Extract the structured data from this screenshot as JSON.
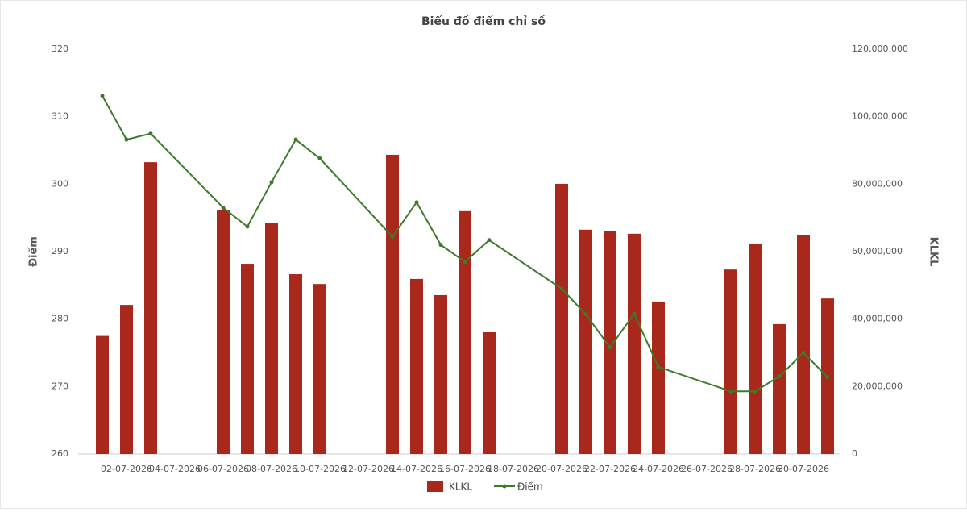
{
  "chart_data": {
    "type": "bar",
    "title": "Biểu đồ điểm chỉ số",
    "ylabel": "Điểm",
    "y2label": "KLKL",
    "x": [
      "01-07-2026",
      "02-07-2026",
      "03-07-2026",
      "06-07-2026",
      "07-07-2026",
      "08-07-2026",
      "09-07-2026",
      "10-07-2026",
      "13-07-2026",
      "14-07-2026",
      "15-07-2026",
      "16-07-2026",
      "17-07-2026",
      "20-07-2026",
      "21-07-2026",
      "22-07-2026",
      "23-07-2026",
      "24-07-2026",
      "27-07-2026",
      "28-07-2026",
      "29-07-2026",
      "30-07-2026",
      "31-07-2026"
    ],
    "xlim": [
      "01-07-2026",
      "31-07-2026"
    ],
    "xticks": [
      "02-07-2026",
      "04-07-2026",
      "06-07-2026",
      "08-07-2026",
      "10-07-2026",
      "12-07-2026",
      "14-07-2026",
      "16-07-2026",
      "18-07-2026",
      "20-07-2026",
      "22-07-2026",
      "24-07-2026",
      "26-07-2026",
      "28-07-2026",
      "30-07-2026"
    ],
    "ylim": [
      260,
      320
    ],
    "yticks": [
      260,
      270,
      280,
      290,
      300,
      310,
      320
    ],
    "y2lim": [
      0,
      120000000
    ],
    "y2ticks": [
      0,
      {
        "value": 20000000,
        "label": "20,000,000"
      },
      {
        "value": 40000000,
        "label": "40,000,000"
      },
      {
        "value": 60000000,
        "label": "60,000,000"
      },
      {
        "value": 80000000,
        "label": "80,000,000"
      },
      {
        "value": 100000000,
        "label": "100,000,000"
      },
      {
        "value": 120000000,
        "label": "120,000,000"
      }
    ],
    "grid": false,
    "series": [
      {
        "name": "KLKL",
        "type": "bar",
        "axis": "y2",
        "color": "#a8281c",
        "values": [
          35000000,
          44200000,
          86500000,
          72200000,
          56400000,
          68600000,
          53300000,
          50400000,
          88700000,
          51900000,
          47100000,
          72000000,
          36100000,
          80100000,
          66500000,
          66000000,
          65300000,
          45200000,
          54700000,
          62200000,
          38500000,
          65000000,
          46100000
        ]
      },
      {
        "name": "Điểm",
        "type": "line",
        "axis": "y",
        "color": "#3d7a2a",
        "values": [
          313.1,
          306.6,
          307.5,
          296.5,
          293.7,
          300.3,
          306.6,
          303.8,
          292.2,
          297.3,
          291.0,
          288.5,
          291.7,
          284.5,
          280.7,
          275.8,
          280.8,
          272.9,
          269.3,
          269.3,
          271.5,
          275.0,
          271.4
        ]
      }
    ]
  }
}
